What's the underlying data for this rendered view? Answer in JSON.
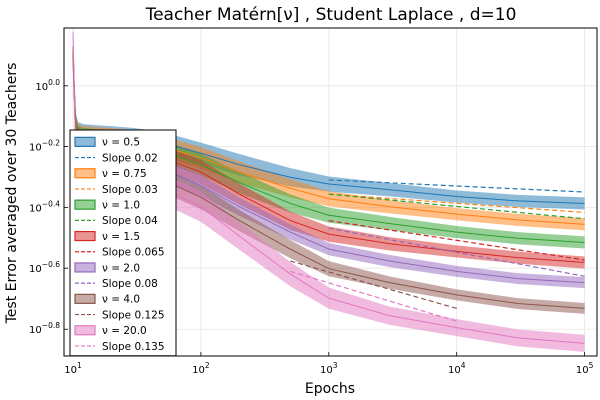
{
  "chart_data": {
    "type": "line",
    "title": "Teacher Matérn[ν] , Student Laplace , d=10",
    "xlabel": "Epochs",
    "ylabel": "Test Error averaged over 30 Teachers",
    "x_scale": "log10",
    "y_scale": "log10",
    "xlim": [
      8.5,
      125000
    ],
    "ylim": [
      0.129,
      1.55
    ],
    "xticks": [
      {
        "value": 10,
        "base": "10",
        "exp": "1"
      },
      {
        "value": 100,
        "base": "10",
        "exp": "2"
      },
      {
        "value": 1000,
        "base": "10",
        "exp": "3"
      },
      {
        "value": 10000,
        "base": "10",
        "exp": "4"
      },
      {
        "value": 100000,
        "base": "10",
        "exp": "5"
      }
    ],
    "yticks": [
      {
        "value": 1.0,
        "base": "10",
        "exp": "0.0"
      },
      {
        "value": 0.631,
        "base": "10",
        "exp": "−0.2"
      },
      {
        "value": 0.398,
        "base": "10",
        "exp": "−0.4"
      },
      {
        "value": 0.251,
        "base": "10",
        "exp": "−0.6"
      },
      {
        "value": 0.158,
        "base": "10",
        "exp": "−0.8"
      }
    ],
    "grid": true,
    "legend_position": "left-middle",
    "series": [
      {
        "name": "ν = 0.5",
        "color": "#1f77b4",
        "kind": "band",
        "x": [
          10,
          10.5,
          11,
          12,
          15,
          20,
          30,
          50,
          100,
          200,
          500,
          1000,
          3000,
          10000,
          30000,
          100000
        ],
        "y": [
          1.3,
          0.75,
          0.7,
          0.69,
          0.685,
          0.68,
          0.67,
          0.65,
          0.6,
          0.55,
          0.5,
          0.475,
          0.455,
          0.432,
          0.418,
          0.41
        ],
        "band": [
          0.035,
          0.035,
          0.035,
          0.035,
          0.035,
          0.035,
          0.035,
          0.035,
          0.035,
          0.035,
          0.03,
          0.025,
          0.022,
          0.02,
          0.02,
          0.02
        ]
      },
      {
        "name": "Slope 0.02",
        "color": "#1f77b4",
        "kind": "dashed",
        "x": [
          1000,
          100000
        ],
        "y": [
          0.49,
          0.447
        ]
      },
      {
        "name": "ν = 0.75",
        "color": "#ff7f0e",
        "kind": "band",
        "x": [
          10,
          10.5,
          11,
          12,
          15,
          20,
          30,
          50,
          100,
          200,
          500,
          1000,
          3000,
          10000,
          30000,
          100000
        ],
        "y": [
          1.2,
          0.74,
          0.69,
          0.68,
          0.675,
          0.67,
          0.66,
          0.63,
          0.58,
          0.52,
          0.46,
          0.425,
          0.4,
          0.378,
          0.362,
          0.35
        ],
        "band": [
          0.035,
          0.035,
          0.035,
          0.035,
          0.035,
          0.035,
          0.035,
          0.035,
          0.035,
          0.035,
          0.03,
          0.025,
          0.022,
          0.02,
          0.02,
          0.02
        ]
      },
      {
        "name": "Slope 0.03",
        "color": "#ff7f0e",
        "kind": "dashed",
        "x": [
          1000,
          100000
        ],
        "y": [
          0.44,
          0.383
        ]
      },
      {
        "name": "ν = 1.0",
        "color": "#2ca02c",
        "kind": "band",
        "x": [
          10,
          10.5,
          11,
          12,
          15,
          20,
          30,
          50,
          100,
          200,
          500,
          1000,
          3000,
          10000,
          30000,
          100000
        ],
        "y": [
          1.25,
          0.73,
          0.68,
          0.67,
          0.665,
          0.66,
          0.64,
          0.61,
          0.55,
          0.48,
          0.41,
          0.375,
          0.352,
          0.33,
          0.315,
          0.305
        ],
        "band": [
          0.035,
          0.035,
          0.035,
          0.035,
          0.035,
          0.035,
          0.035,
          0.035,
          0.035,
          0.035,
          0.03,
          0.025,
          0.022,
          0.02,
          0.02,
          0.02
        ]
      },
      {
        "name": "Slope 0.04",
        "color": "#2ca02c",
        "kind": "dashed",
        "x": [
          1000,
          100000
        ],
        "y": [
          0.44,
          0.365
        ]
      },
      {
        "name": "ν = 1.5",
        "color": "#d62728",
        "kind": "band",
        "x": [
          10,
          10.5,
          11,
          12,
          15,
          20,
          30,
          50,
          100,
          200,
          500,
          1000,
          3000,
          10000,
          30000,
          100000
        ],
        "y": [
          1.3,
          0.7,
          0.66,
          0.65,
          0.645,
          0.64,
          0.61,
          0.58,
          0.52,
          0.44,
          0.36,
          0.325,
          0.302,
          0.285,
          0.272,
          0.262
        ],
        "band": [
          0.04,
          0.04,
          0.04,
          0.04,
          0.04,
          0.04,
          0.04,
          0.04,
          0.04,
          0.035,
          0.03,
          0.025,
          0.022,
          0.02,
          0.02,
          0.02
        ]
      },
      {
        "name": "Slope 0.065",
        "color": "#d62728",
        "kind": "dashed",
        "x": [
          1000,
          100000
        ],
        "y": [
          0.36,
          0.267
        ]
      },
      {
        "name": "ν = 2.0",
        "color": "#9467bd",
        "kind": "band",
        "x": [
          10,
          10.5,
          11,
          12,
          15,
          20,
          30,
          50,
          100,
          200,
          500,
          1000,
          3000,
          10000,
          30000,
          100000
        ],
        "y": [
          1.2,
          0.65,
          0.62,
          0.61,
          0.6,
          0.59,
          0.565,
          0.53,
          0.47,
          0.4,
          0.33,
          0.29,
          0.265,
          0.245,
          0.232,
          0.225
        ],
        "band": [
          0.035,
          0.035,
          0.035,
          0.035,
          0.035,
          0.035,
          0.035,
          0.035,
          0.035,
          0.03,
          0.025,
          0.02,
          0.02,
          0.018,
          0.018,
          0.018
        ]
      },
      {
        "name": "Slope 0.08",
        "color": "#9467bd",
        "kind": "dashed",
        "x": [
          1000,
          100000
        ],
        "y": [
          0.34,
          0.236
        ]
      },
      {
        "name": "ν = 4.0",
        "color": "#8c564b",
        "kind": "band",
        "x": [
          10,
          10.5,
          11,
          12,
          15,
          20,
          30,
          50,
          100,
          200,
          500,
          1000,
          3000,
          10000,
          30000,
          100000
        ],
        "y": [
          1.35,
          0.62,
          0.58,
          0.57,
          0.56,
          0.55,
          0.525,
          0.49,
          0.43,
          0.36,
          0.29,
          0.25,
          0.225,
          0.205,
          0.192,
          0.185
        ],
        "band": [
          0.04,
          0.04,
          0.04,
          0.04,
          0.04,
          0.04,
          0.04,
          0.04,
          0.04,
          0.035,
          0.03,
          0.025,
          0.02,
          0.018,
          0.018,
          0.018
        ]
      },
      {
        "name": "Slope 0.125",
        "color": "#8c564b",
        "kind": "dashed",
        "x": [
          500,
          10000
        ],
        "y": [
          0.265,
          0.185
        ]
      },
      {
        "name": "ν = 20.0",
        "color": "#e377c2",
        "kind": "band",
        "x": [
          10,
          10.5,
          11,
          12,
          15,
          20,
          30,
          50,
          100,
          200,
          500,
          1000,
          3000,
          10000,
          30000,
          100000
        ],
        "y": [
          1.5,
          0.58,
          0.55,
          0.545,
          0.54,
          0.53,
          0.5,
          0.46,
          0.4,
          0.32,
          0.24,
          0.2,
          0.175,
          0.16,
          0.148,
          0.142
        ],
        "band": [
          0.05,
          0.05,
          0.05,
          0.05,
          0.05,
          0.05,
          0.05,
          0.05,
          0.05,
          0.045,
          0.04,
          0.035,
          0.03,
          0.028,
          0.028,
          0.028
        ]
      },
      {
        "name": "Slope 0.135",
        "color": "#e377c2",
        "kind": "dashed",
        "x": [
          500,
          10000
        ],
        "y": [
          0.245,
          0.168
        ]
      }
    ]
  }
}
